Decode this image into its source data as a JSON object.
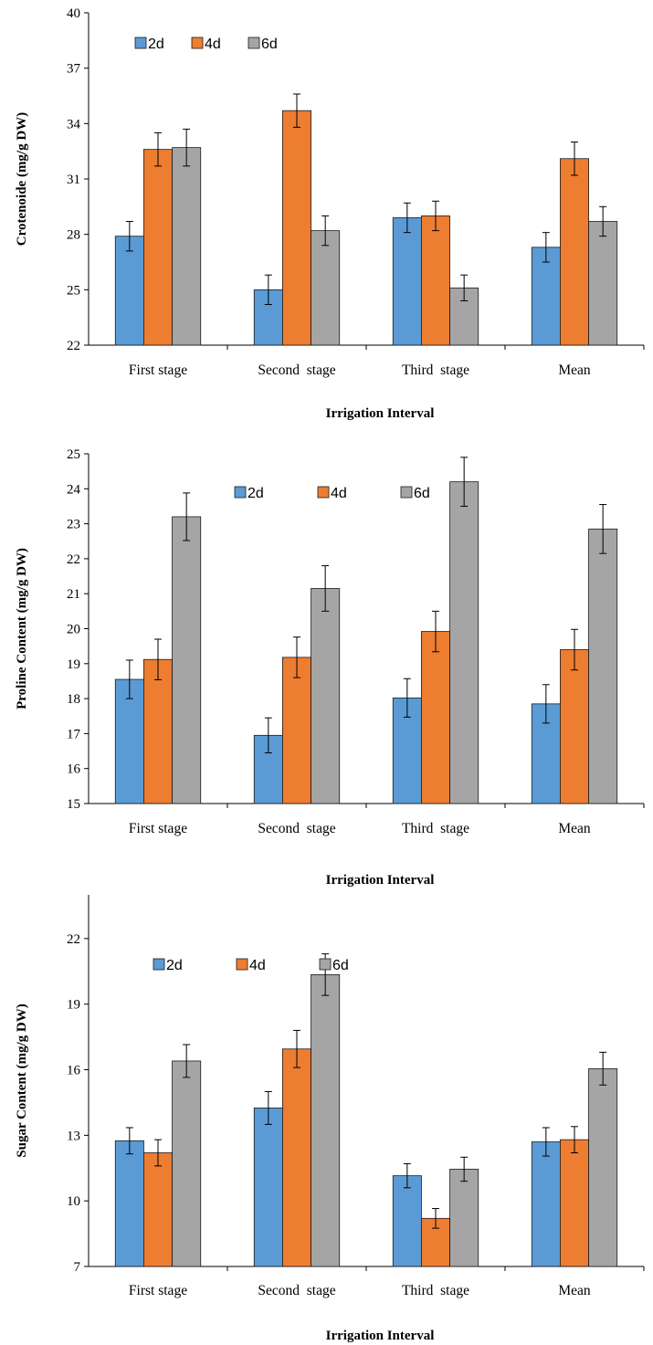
{
  "chart_data": [
    {
      "type": "bar",
      "categories": [
        "First stage",
        "Second  stage",
        "Third  stage",
        "Mean"
      ],
      "series": [
        {
          "name": "2d",
          "color": "#5b9bd5",
          "values": [
            27.9,
            25.0,
            28.9,
            27.3
          ],
          "errors": [
            0.8,
            0.8,
            0.8,
            0.8
          ]
        },
        {
          "name": "4d",
          "color": "#ed7d31",
          "values": [
            32.6,
            34.7,
            29.0,
            32.1
          ],
          "errors": [
            0.9,
            0.9,
            0.8,
            0.9
          ]
        },
        {
          "name": "6d",
          "color": "#a5a5a5",
          "values": [
            32.7,
            28.2,
            25.1,
            28.7
          ],
          "errors": [
            1.0,
            0.8,
            0.7,
            0.8
          ]
        }
      ],
      "yticks": [
        22,
        25,
        28,
        31,
        34,
        37,
        40
      ],
      "ylim": [
        22,
        40
      ],
      "xlabel": "Irrigation Interval",
      "ylabel": "Crotenoide (mg/g DW)",
      "legend": "top-left",
      "grid": false
    },
    {
      "type": "bar",
      "categories": [
        "First stage",
        "Second  stage",
        "Third  stage",
        "Mean"
      ],
      "series": [
        {
          "name": "2d",
          "color": "#5b9bd5",
          "values": [
            18.55,
            16.95,
            18.02,
            17.85
          ],
          "errors": [
            0.55,
            0.5,
            0.55,
            0.55
          ]
        },
        {
          "name": "4d",
          "color": "#ed7d31",
          "values": [
            19.12,
            19.18,
            19.92,
            19.4
          ],
          "errors": [
            0.58,
            0.58,
            0.58,
            0.58
          ]
        },
        {
          "name": "6d",
          "color": "#a5a5a5",
          "values": [
            23.2,
            21.15,
            24.2,
            22.85
          ],
          "errors": [
            0.68,
            0.65,
            0.7,
            0.7
          ]
        }
      ],
      "yticks": [
        15,
        16,
        17,
        18,
        19,
        20,
        21,
        22,
        23,
        24,
        25
      ],
      "ylim": [
        15,
        25
      ],
      "xlabel": "Irrigation Interval",
      "ylabel": "Proline Content (mg/g DW)",
      "legend": "top-center",
      "grid": false
    },
    {
      "type": "bar",
      "categories": [
        "First stage",
        "Second  stage",
        "Third  stage",
        "Mean"
      ],
      "series": [
        {
          "name": "2d",
          "color": "#5b9bd5",
          "values": [
            12.75,
            14.25,
            11.15,
            12.7
          ],
          "errors": [
            0.6,
            0.75,
            0.55,
            0.65
          ]
        },
        {
          "name": "4d",
          "color": "#ed7d31",
          "values": [
            12.2,
            16.95,
            9.2,
            12.8
          ],
          "errors": [
            0.6,
            0.85,
            0.45,
            0.6
          ]
        },
        {
          "name": "6d",
          "color": "#a5a5a5",
          "values": [
            16.4,
            20.35,
            11.45,
            16.05
          ],
          "errors": [
            0.75,
            0.95,
            0.55,
            0.75
          ]
        }
      ],
      "yticks": [
        7,
        10,
        13,
        16,
        19,
        22
      ],
      "ylim": [
        7,
        24
      ],
      "xlabel": "Irrigation Interval",
      "ylabel": "Sugar Content (mg/g DW)",
      "legend": "top-left",
      "grid": false
    }
  ]
}
